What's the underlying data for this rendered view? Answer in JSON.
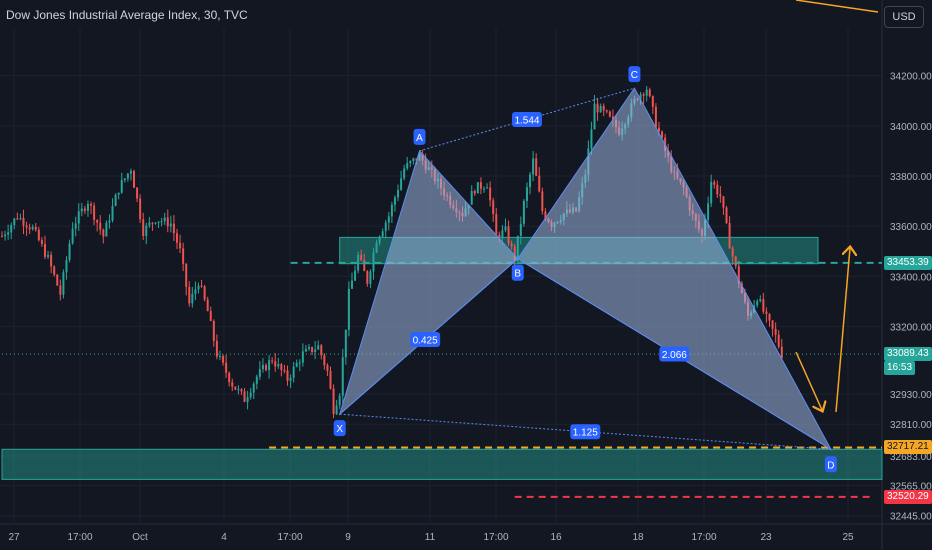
{
  "header": {
    "title": "Dow Jones Industrial Average Index, 30, TVC",
    "currency_label": "USD"
  },
  "price_badges": [
    {
      "id": "resistance",
      "label": "33453.39",
      "bg": "#26a69a",
      "fg": "#ffffff"
    },
    {
      "id": "last",
      "label": "33089.43",
      "bg": "#26a69a",
      "fg": "#ffffff"
    },
    {
      "id": "countdown",
      "label": "16:53",
      "bg": "#26a69a",
      "fg": "#ffffff"
    },
    {
      "id": "target",
      "label": "32717.21",
      "bg": "#f5a623",
      "fg": "#131722"
    },
    {
      "id": "stop",
      "label": "32520.29",
      "bg": "#f23645",
      "fg": "#ffffff"
    }
  ],
  "chart_data": {
    "type": "candlestick",
    "x_ticks": [
      "27",
      "17:00",
      "Oct",
      "4",
      "17:00",
      "9",
      "11",
      "17:00",
      "16",
      "18",
      "17:00",
      "23",
      "25"
    ],
    "y_ticks": [
      34200,
      34000,
      33800,
      33600,
      33400,
      33200,
      32930,
      32810,
      32683,
      32565,
      32445
    ],
    "y_tick_labels": [
      "34200.00",
      "34000.00",
      "33800.00",
      "33600.00",
      "33400.00",
      "33200.00",
      "32930.00",
      "32810.00",
      "32683.00",
      "32565.00",
      "32445.00"
    ],
    "ylim": [
      32420,
      34390
    ],
    "grid": true,
    "colors": {
      "up": "#26a69a",
      "down": "#ef5350",
      "pattern_fill": "#9db5e0",
      "pattern_line": "#5b8def",
      "zone_fill": "#26a69a",
      "arrow": "#f5a623"
    },
    "price_path": [
      [
        0,
        33560
      ],
      [
        5,
        33640
      ],
      [
        10,
        33590
      ],
      [
        15,
        33470
      ],
      [
        19,
        33330
      ],
      [
        23,
        33600
      ],
      [
        28,
        33700
      ],
      [
        33,
        33560
      ],
      [
        38,
        33750
      ],
      [
        42,
        33830
      ],
      [
        46,
        33580
      ],
      [
        50,
        33630
      ],
      [
        55,
        33610
      ],
      [
        58,
        33500
      ],
      [
        61,
        33290
      ],
      [
        64,
        33380
      ],
      [
        67,
        33260
      ],
      [
        70,
        33090
      ],
      [
        75,
        32970
      ],
      [
        79,
        32910
      ],
      [
        83,
        33000
      ],
      [
        88,
        33070
      ],
      [
        93,
        32990
      ],
      [
        98,
        33090
      ],
      [
        103,
        33120
      ],
      [
        106,
        33020
      ],
      [
        108,
        32870
      ],
      [
        110,
        32940
      ],
      [
        113,
        33330
      ],
      [
        116,
        33480
      ],
      [
        119,
        33380
      ],
      [
        122,
        33550
      ],
      [
        126,
        33640
      ],
      [
        131,
        33830
      ],
      [
        136,
        33880
      ],
      [
        141,
        33790
      ],
      [
        146,
        33700
      ],
      [
        150,
        33650
      ],
      [
        154,
        33750
      ],
      [
        158,
        33770
      ],
      [
        161,
        33560
      ],
      [
        164,
        33580
      ],
      [
        167,
        33470
      ],
      [
        170,
        33690
      ],
      [
        173,
        33860
      ],
      [
        176,
        33660
      ],
      [
        179,
        33610
      ],
      [
        183,
        33650
      ],
      [
        187,
        33660
      ],
      [
        190,
        33810
      ],
      [
        193,
        34080
      ],
      [
        197,
        34040
      ],
      [
        201,
        33980
      ],
      [
        204,
        34050
      ],
      [
        207,
        34120
      ],
      [
        210,
        34150
      ],
      [
        213,
        34010
      ],
      [
        216,
        33900
      ],
      [
        219,
        33800
      ],
      [
        222,
        33750
      ],
      [
        225,
        33640
      ],
      [
        228,
        33560
      ],
      [
        231,
        33780
      ],
      [
        234,
        33720
      ],
      [
        237,
        33530
      ],
      [
        240,
        33380
      ],
      [
        243,
        33240
      ],
      [
        246,
        33320
      ],
      [
        249,
        33230
      ],
      [
        252,
        33160
      ],
      [
        254,
        33090
      ]
    ],
    "pattern": {
      "name": "Bearish-to-bullish harmonic (XABCD)",
      "points": [
        {
          "label": "X",
          "index": 110,
          "price": 32850
        },
        {
          "label": "A",
          "index": 136,
          "price": 33900
        },
        {
          "label": "B",
          "index": 168,
          "price": 33470
        },
        {
          "label": "C",
          "index": 206,
          "price": 34150
        },
        {
          "label": "D",
          "index": 270,
          "price": 32710
        }
      ],
      "ratios": [
        {
          "label": "0.425",
          "between": "XB"
        },
        {
          "label": "1.544",
          "between": "AC"
        },
        {
          "label": "2.066",
          "between": "BD"
        },
        {
          "label": "1.125",
          "between": "XD"
        }
      ]
    },
    "zones": [
      {
        "name": "resistance",
        "from_index": 110,
        "top": 33555,
        "bottom": 33450
      },
      {
        "name": "support",
        "from_index": 0,
        "top": 32710,
        "bottom": 32590
      }
    ],
    "levels": [
      {
        "name": "resistance",
        "price": 33453.39,
        "style": "dashed",
        "color": "#26a69a",
        "from_index": 94
      },
      {
        "name": "target",
        "price": 32717.21,
        "style": "dashed",
        "color": "#f5a623",
        "from_index": 87
      },
      {
        "name": "stop",
        "price": 32520.29,
        "style": "dashed",
        "color": "#f23645",
        "from_index": 167
      },
      {
        "name": "last",
        "price": 33089.43,
        "style": "dotted",
        "color": "#26a69a",
        "from_index": 0
      }
    ]
  }
}
